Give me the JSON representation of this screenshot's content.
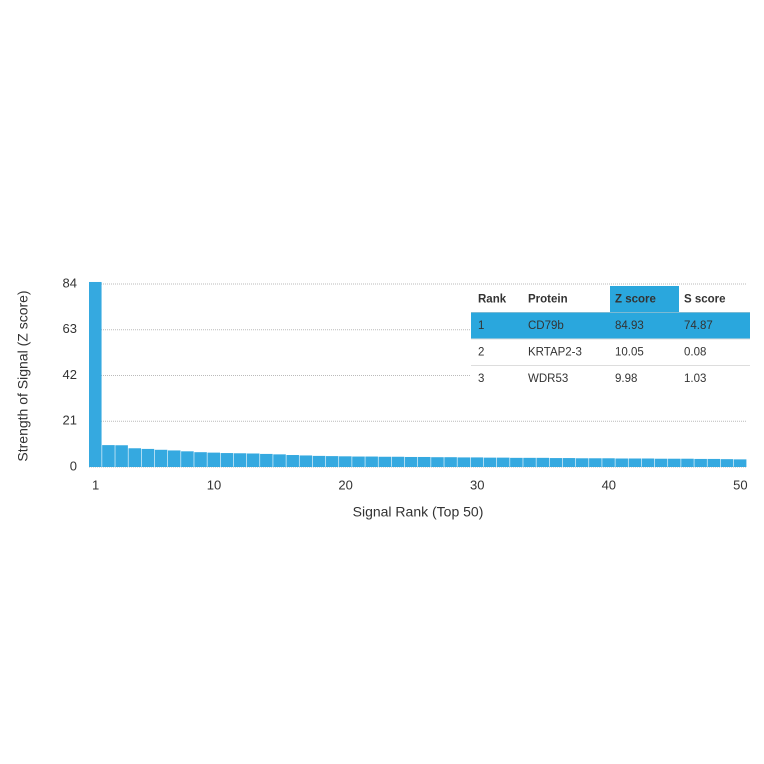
{
  "chart_data": {
    "type": "bar",
    "y_label": "Strength of Signal (Z score)",
    "x_label": "Signal Rank (Top 50)",
    "x": [
      1,
      2,
      3,
      4,
      5,
      6,
      7,
      8,
      9,
      10,
      11,
      12,
      13,
      14,
      15,
      16,
      17,
      18,
      19,
      20,
      21,
      22,
      23,
      24,
      25,
      26,
      27,
      28,
      29,
      30,
      31,
      32,
      33,
      34,
      35,
      36,
      37,
      38,
      39,
      40,
      41,
      42,
      43,
      44,
      45,
      46,
      47,
      48,
      49,
      50
    ],
    "values": [
      84.93,
      10.05,
      9.98,
      8.6,
      8.3,
      7.9,
      7.6,
      7.2,
      6.8,
      6.6,
      6.4,
      6.3,
      6.2,
      6.0,
      5.8,
      5.5,
      5.3,
      5.1,
      5.0,
      4.9,
      4.8,
      4.8,
      4.7,
      4.7,
      4.6,
      4.6,
      4.5,
      4.5,
      4.4,
      4.4,
      4.3,
      4.3,
      4.2,
      4.2,
      4.2,
      4.1,
      4.1,
      4.0,
      4.0,
      4.0,
      3.9,
      3.9,
      3.9,
      3.8,
      3.8,
      3.8,
      3.7,
      3.7,
      3.6,
      3.5
    ],
    "color": "#35a9e0",
    "xlim": [
      0.5,
      50.5
    ],
    "xticks": [
      1,
      10,
      20,
      30,
      40,
      50
    ],
    "ylim": [
      0,
      84
    ],
    "yticks": [
      0,
      21,
      42,
      63,
      84
    ],
    "grid": true,
    "table": {
      "columns": [
        "Rank",
        "Protein",
        "Z score",
        "S score"
      ],
      "rows": [
        [
          "1",
          "CD79b",
          "84.93",
          "74.87"
        ],
        [
          "2",
          "KRTAP2-3",
          "10.05",
          "0.08"
        ],
        [
          "3",
          "WDR53",
          "9.98",
          "1.03"
        ]
      ],
      "highlight_color": "#2aa7dd"
    }
  }
}
